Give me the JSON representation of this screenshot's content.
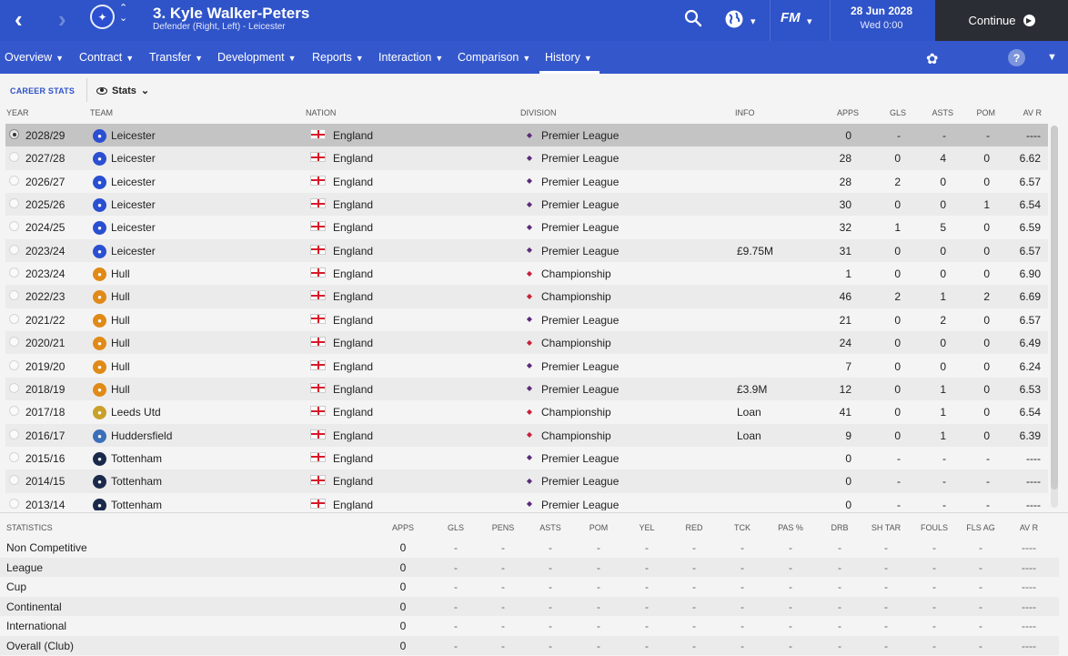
{
  "header": {
    "player_title": "3. Kyle Walker-Peters",
    "player_subtitle": "Defender (Right, Left) - Leicester",
    "date": "28 Jun 2028",
    "time": "Wed 0:00",
    "continue_label": "Continue",
    "fm_logo": "FM",
    "colors": {
      "accent": "#2f53c8",
      "continue_bg": "#2a2d33"
    }
  },
  "menu": [
    {
      "label": "Overview"
    },
    {
      "label": "Contract"
    },
    {
      "label": "Transfer"
    },
    {
      "label": "Development"
    },
    {
      "label": "Reports"
    },
    {
      "label": "Interaction"
    },
    {
      "label": "Comparison"
    },
    {
      "label": "History"
    }
  ],
  "subheader": {
    "tab_label": "CAREER STATS",
    "view_label": "Stats"
  },
  "career_columns": [
    "YEAR",
    "TEAM",
    "NATION",
    "DIVISION",
    "INFO",
    "APPS",
    "GLS",
    "ASTS",
    "POM",
    "AV R"
  ],
  "career_rows": [
    {
      "year": "2028/29",
      "team": "Leicester",
      "nation": "England",
      "division": "Premier League",
      "info": "",
      "apps": "0",
      "gls": "-",
      "asts": "-",
      "pom": "-",
      "avr": "----",
      "selected": true
    },
    {
      "year": "2027/28",
      "team": "Leicester",
      "nation": "England",
      "division": "Premier League",
      "info": "",
      "apps": "28",
      "gls": "0",
      "asts": "4",
      "pom": "0",
      "avr": "6.62"
    },
    {
      "year": "2026/27",
      "team": "Leicester",
      "nation": "England",
      "division": "Premier League",
      "info": "",
      "apps": "28",
      "gls": "2",
      "asts": "0",
      "pom": "0",
      "avr": "6.57"
    },
    {
      "year": "2025/26",
      "team": "Leicester",
      "nation": "England",
      "division": "Premier League",
      "info": "",
      "apps": "30",
      "gls": "0",
      "asts": "0",
      "pom": "1",
      "avr": "6.54"
    },
    {
      "year": "2024/25",
      "team": "Leicester",
      "nation": "England",
      "division": "Premier League",
      "info": "",
      "apps": "32",
      "gls": "1",
      "asts": "5",
      "pom": "0",
      "avr": "6.59"
    },
    {
      "year": "2023/24",
      "team": "Leicester",
      "nation": "England",
      "division": "Premier League",
      "info": "£9.75M",
      "apps": "31",
      "gls": "0",
      "asts": "0",
      "pom": "0",
      "avr": "6.57"
    },
    {
      "year": "2023/24",
      "team": "Hull",
      "nation": "England",
      "division": "Championship",
      "info": "",
      "apps": "1",
      "gls": "0",
      "asts": "0",
      "pom": "0",
      "avr": "6.90"
    },
    {
      "year": "2022/23",
      "team": "Hull",
      "nation": "England",
      "division": "Championship",
      "info": "",
      "apps": "46",
      "gls": "2",
      "asts": "1",
      "pom": "2",
      "avr": "6.69"
    },
    {
      "year": "2021/22",
      "team": "Hull",
      "nation": "England",
      "division": "Premier League",
      "info": "",
      "apps": "21",
      "gls": "0",
      "asts": "2",
      "pom": "0",
      "avr": "6.57"
    },
    {
      "year": "2020/21",
      "team": "Hull",
      "nation": "England",
      "division": "Championship",
      "info": "",
      "apps": "24",
      "gls": "0",
      "asts": "0",
      "pom": "0",
      "avr": "6.49"
    },
    {
      "year": "2019/20",
      "team": "Hull",
      "nation": "England",
      "division": "Premier League",
      "info": "",
      "apps": "7",
      "gls": "0",
      "asts": "0",
      "pom": "0",
      "avr": "6.24"
    },
    {
      "year": "2018/19",
      "team": "Hull",
      "nation": "England",
      "division": "Premier League",
      "info": "£3.9M",
      "apps": "12",
      "gls": "0",
      "asts": "1",
      "pom": "0",
      "avr": "6.53"
    },
    {
      "year": "2017/18",
      "team": "Leeds Utd",
      "nation": "England",
      "division": "Championship",
      "info": "Loan",
      "apps": "41",
      "gls": "0",
      "asts": "1",
      "pom": "0",
      "avr": "6.54"
    },
    {
      "year": "2016/17",
      "team": "Huddersfield",
      "nation": "England",
      "division": "Championship",
      "info": "Loan",
      "apps": "9",
      "gls": "0",
      "asts": "1",
      "pom": "0",
      "avr": "6.39"
    },
    {
      "year": "2015/16",
      "team": "Tottenham",
      "nation": "England",
      "division": "Premier League",
      "info": "",
      "apps": "0",
      "gls": "-",
      "asts": "-",
      "pom": "-",
      "avr": "----"
    },
    {
      "year": "2014/15",
      "team": "Tottenham",
      "nation": "England",
      "division": "Premier League",
      "info": "",
      "apps": "0",
      "gls": "-",
      "asts": "-",
      "pom": "-",
      "avr": "----"
    },
    {
      "year": "2013/14",
      "team": "Tottenham",
      "nation": "England",
      "division": "Premier League",
      "info": "",
      "apps": "0",
      "gls": "-",
      "asts": "-",
      "pom": "-",
      "avr": "----"
    }
  ],
  "stats_columns": [
    "STATISTICS",
    "APPS",
    "GLS",
    "PENS",
    "ASTS",
    "POM",
    "YEL",
    "RED",
    "TCK",
    "PAS %",
    "DRB",
    "SH TAR",
    "FOULS",
    "FLS AG",
    "AV R"
  ],
  "stats_rows": [
    {
      "label": "Non Competitive",
      "values": [
        "0",
        "-",
        "-",
        "-",
        "-",
        "-",
        "-",
        "-",
        "-",
        "-",
        "-",
        "-",
        "-",
        "----"
      ]
    },
    {
      "label": "League",
      "values": [
        "0",
        "-",
        "-",
        "-",
        "-",
        "-",
        "-",
        "-",
        "-",
        "-",
        "-",
        "-",
        "-",
        "----"
      ]
    },
    {
      "label": "Cup",
      "values": [
        "0",
        "-",
        "-",
        "-",
        "-",
        "-",
        "-",
        "-",
        "-",
        "-",
        "-",
        "-",
        "-",
        "----"
      ]
    },
    {
      "label": "Continental",
      "values": [
        "0",
        "-",
        "-",
        "-",
        "-",
        "-",
        "-",
        "-",
        "-",
        "-",
        "-",
        "-",
        "-",
        "----"
      ]
    },
    {
      "label": "International",
      "values": [
        "0",
        "-",
        "-",
        "-",
        "-",
        "-",
        "-",
        "-",
        "-",
        "-",
        "-",
        "-",
        "-",
        "----"
      ]
    },
    {
      "label": "Overall (Club)",
      "values": [
        "0",
        "-",
        "-",
        "-",
        "-",
        "-",
        "-",
        "-",
        "-",
        "-",
        "-",
        "-",
        "-",
        "----"
      ]
    }
  ],
  "team_icons": {
    "Leicester": {
      "icon": "leicester-crest-icon",
      "color": "#2a4fd1"
    },
    "Hull": {
      "icon": "hull-crest-icon",
      "color": "#e08a17"
    },
    "Leeds Utd": {
      "icon": "leeds-crest-icon",
      "color": "#c8a12a"
    },
    "Huddersfield": {
      "icon": "huddersfield-crest-icon",
      "color": "#3b6fb8"
    },
    "Tottenham": {
      "icon": "tottenham-crest-icon",
      "color": "#1b2a4a"
    }
  },
  "division_icons": {
    "Premier League": {
      "icon": "premier-league-icon",
      "color": "#5a2a7a"
    },
    "Championship": {
      "icon": "championship-icon",
      "color": "#c9203a"
    }
  }
}
